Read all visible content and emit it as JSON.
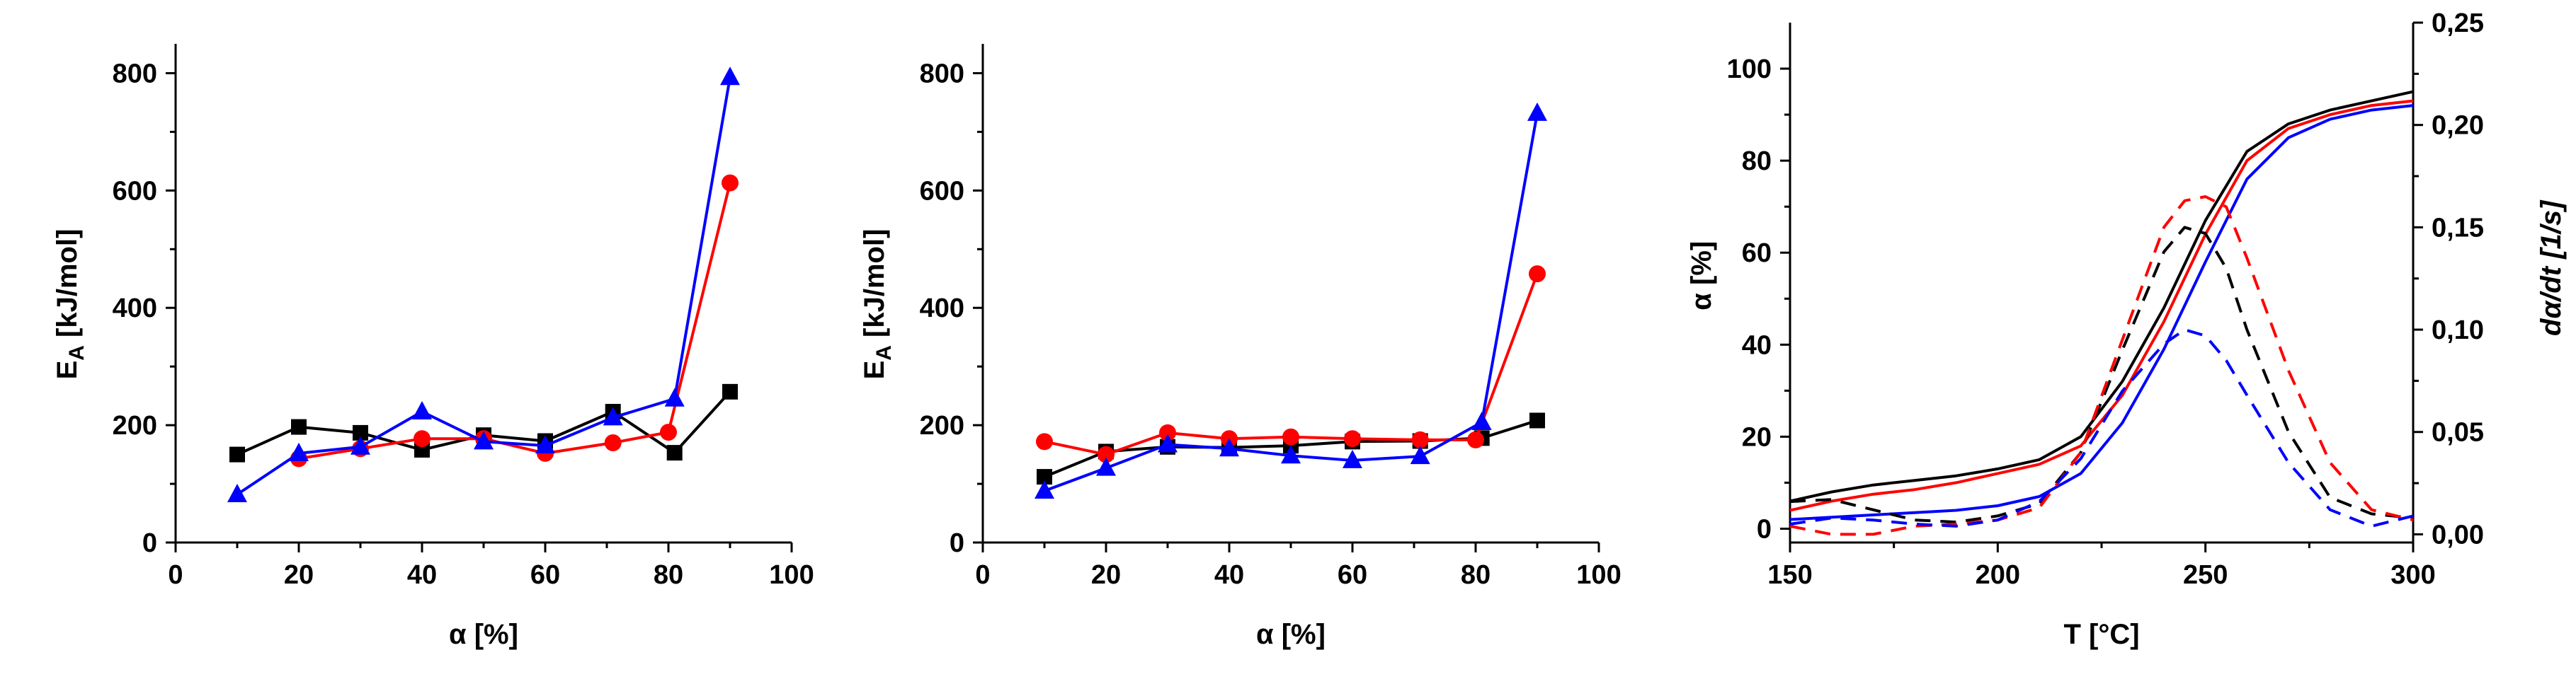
{
  "chart_data": [
    {
      "type": "line",
      "xlabel": "α [%]",
      "ylabel": "E",
      "ylabel_sub": "A",
      "ylabel_unit": " [kJ/mol]",
      "xlim": [
        0,
        100
      ],
      "ylim": [
        0,
        850
      ],
      "xticks": [
        0,
        20,
        40,
        60,
        80,
        100
      ],
      "yticks": [
        0,
        200,
        400,
        600,
        800
      ],
      "grid": false,
      "series": [
        {
          "name": "black",
          "color": "#000000",
          "marker": "square",
          "x": [
            10,
            20,
            30,
            40,
            50,
            60,
            71,
            81,
            90
          ],
          "y": [
            150,
            197,
            187,
            158,
            183,
            173,
            223,
            153,
            257
          ]
        },
        {
          "name": "red",
          "color": "#ff0000",
          "marker": "circle",
          "x": [
            20,
            30,
            40,
            50,
            60,
            71,
            80,
            90
          ],
          "y": [
            143,
            160,
            177,
            177,
            152,
            170,
            188,
            613
          ]
        },
        {
          "name": "blue",
          "color": "#0000ff",
          "marker": "triangle",
          "x": [
            10,
            20,
            30,
            40,
            50,
            60,
            71,
            81,
            90
          ],
          "y": [
            82,
            152,
            163,
            223,
            172,
            165,
            213,
            245,
            793
          ]
        }
      ]
    },
    {
      "type": "line",
      "xlabel": "α [%]",
      "ylabel": "E",
      "ylabel_sub": "A",
      "ylabel_unit": " [kJ/mol]",
      "xlim": [
        0,
        100
      ],
      "ylim": [
        0,
        850
      ],
      "xticks": [
        0,
        20,
        40,
        60,
        80,
        100
      ],
      "yticks": [
        0,
        200,
        400,
        600,
        800
      ],
      "grid": false,
      "series": [
        {
          "name": "black",
          "color": "#000000",
          "marker": "square",
          "x": [
            10,
            20,
            30,
            40,
            50,
            60,
            71,
            81,
            90
          ],
          "y": [
            112,
            155,
            163,
            162,
            165,
            172,
            173,
            178,
            208
          ]
        },
        {
          "name": "red",
          "color": "#ff0000",
          "marker": "circle",
          "x": [
            10,
            20,
            30,
            40,
            50,
            60,
            71,
            80,
            90
          ],
          "y": [
            172,
            150,
            187,
            177,
            180,
            177,
            175,
            175,
            458
          ]
        },
        {
          "name": "blue",
          "color": "#0000ff",
          "marker": "triangle",
          "x": [
            10,
            20,
            30,
            40,
            50,
            60,
            71,
            81,
            90
          ],
          "y": [
            88,
            127,
            167,
            160,
            148,
            140,
            147,
            205,
            732
          ]
        }
      ]
    },
    {
      "type": "line",
      "xlabel": "T [°C]",
      "ylabel": "α [%]",
      "y2label": "dα/dt [1/s]",
      "xlim": [
        150,
        300
      ],
      "ylim": [
        -3,
        110
      ],
      "y2lim": [
        -0.004,
        0.25
      ],
      "xticks": [
        150,
        200,
        250,
        300
      ],
      "yticks": [
        0,
        20,
        40,
        60,
        80,
        100
      ],
      "y2ticks": [
        "0,00",
        "0,05",
        "0,10",
        "0,15",
        "0,20",
        "0,25"
      ],
      "y2tick_values": [
        0,
        0.05,
        0.1,
        0.15,
        0.2,
        0.25
      ],
      "grid": false,
      "series": [
        {
          "name": "black conversion",
          "color": "#000000",
          "dash": false,
          "axis": "left",
          "x": [
            150,
            160,
            170,
            180,
            190,
            200,
            210,
            220,
            230,
            240,
            250,
            260,
            270,
            280,
            290,
            300
          ],
          "y": [
            6,
            8,
            9.5,
            10.5,
            11.5,
            13,
            15,
            20,
            32,
            48,
            67,
            82,
            88,
            91,
            93,
            95
          ]
        },
        {
          "name": "red conversion",
          "color": "#ff0000",
          "dash": false,
          "axis": "left",
          "x": [
            150,
            160,
            170,
            180,
            190,
            200,
            210,
            220,
            230,
            240,
            250,
            260,
            270,
            280,
            290,
            300
          ],
          "y": [
            4,
            6,
            7.5,
            8.5,
            10,
            12,
            14,
            18,
            29,
            45,
            64,
            80,
            87,
            90,
            92,
            93
          ]
        },
        {
          "name": "blue conversion",
          "color": "#0000ff",
          "dash": false,
          "axis": "left",
          "x": [
            150,
            160,
            170,
            180,
            190,
            200,
            210,
            220,
            230,
            240,
            250,
            260,
            270,
            280,
            290,
            300
          ],
          "y": [
            2,
            2.5,
            3,
            3.5,
            4,
            5,
            7,
            12,
            23,
            39,
            58,
            76,
            85,
            89,
            91,
            92
          ]
        },
        {
          "name": "black rate",
          "color": "#000000",
          "dash": true,
          "axis": "right",
          "x": [
            150,
            160,
            170,
            180,
            190,
            200,
            210,
            220,
            230,
            240,
            245,
            250,
            255,
            260,
            270,
            280,
            290,
            300
          ],
          "y": [
            0.016,
            0.017,
            0.012,
            0.007,
            0.006,
            0.009,
            0.015,
            0.04,
            0.09,
            0.138,
            0.15,
            0.147,
            0.13,
            0.1,
            0.05,
            0.018,
            0.01,
            0.008
          ]
        },
        {
          "name": "red rate",
          "color": "#ff0000",
          "dash": true,
          "axis": "right",
          "x": [
            150,
            160,
            170,
            180,
            190,
            200,
            210,
            220,
            230,
            240,
            245,
            250,
            255,
            260,
            270,
            280,
            290,
            300
          ],
          "y": [
            0.004,
            0.0,
            0.0,
            0.004,
            0.005,
            0.007,
            0.013,
            0.04,
            0.095,
            0.15,
            0.163,
            0.165,
            0.16,
            0.135,
            0.08,
            0.035,
            0.012,
            0.007
          ]
        },
        {
          "name": "blue rate",
          "color": "#0000ff",
          "dash": true,
          "axis": "right",
          "x": [
            150,
            160,
            170,
            180,
            190,
            200,
            210,
            220,
            230,
            240,
            245,
            250,
            255,
            260,
            270,
            280,
            290,
            300
          ],
          "y": [
            0.005,
            0.008,
            0.007,
            0.005,
            0.004,
            0.007,
            0.016,
            0.037,
            0.07,
            0.093,
            0.1,
            0.097,
            0.085,
            0.068,
            0.035,
            0.012,
            0.004,
            0.009
          ]
        }
      ]
    }
  ]
}
